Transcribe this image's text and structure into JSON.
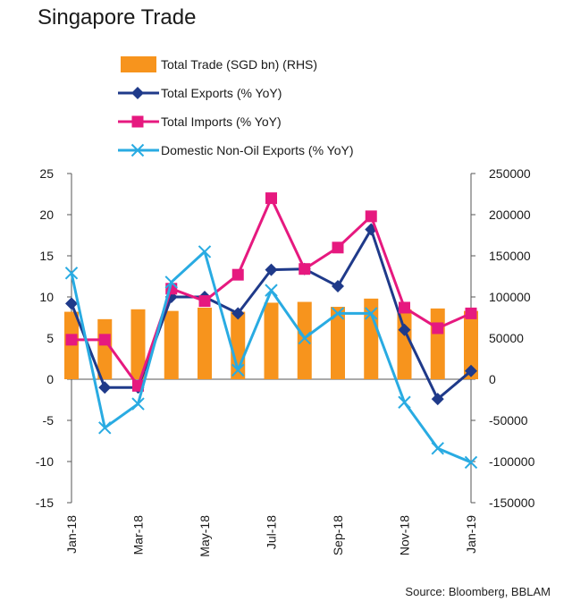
{
  "title": "Singapore Trade",
  "source": "Source: Bloomberg, BBLAM",
  "chart_data": {
    "type": "bar+line",
    "categories": [
      "Jan-18",
      "Feb-18",
      "Mar-18",
      "Apr-18",
      "May-18",
      "Jun-18",
      "Jul-18",
      "Aug-18",
      "Sep-18",
      "Oct-18",
      "Nov-18",
      "Dec-18",
      "Jan-19"
    ],
    "x_tick_labels": [
      "Jan-18",
      "Mar-18",
      "May-18",
      "Jul-18",
      "Sep-18",
      "Nov-18",
      "Jan-19"
    ],
    "left_axis": {
      "ylim": [
        -15,
        25
      ],
      "ticks": [
        "-15",
        "-10",
        "-5",
        "0",
        "5",
        "10",
        "15",
        "20",
        "25"
      ]
    },
    "right_axis": {
      "ylim": [
        -150000,
        250000
      ],
      "ticks": [
        "-150000",
        "-100000",
        "-50000",
        "0",
        "50000",
        "100000",
        "150000",
        "200000",
        "250000"
      ]
    },
    "series": [
      {
        "name": "Total Trade (SGD bn) (RHS)",
        "kind": "bar",
        "axis": "right",
        "color": "#F7941D",
        "values": [
          82000,
          73000,
          85000,
          83000,
          87000,
          82000,
          93000,
          94000,
          88000,
          98000,
          85000,
          86000,
          83000
        ]
      },
      {
        "name": "Total Exports (% YoY)",
        "kind": "line",
        "axis": "left",
        "color": "#1F3A8A",
        "marker": "diamond",
        "values": [
          9.2,
          -1,
          -1,
          10,
          10,
          8,
          13.3,
          13.4,
          11.3,
          18.2,
          6,
          -2.4,
          1
        ]
      },
      {
        "name": "Total Imports (% YoY)",
        "kind": "line",
        "axis": "left",
        "color": "#E6197F",
        "marker": "square",
        "values": [
          4.8,
          4.8,
          -0.8,
          11,
          9.5,
          12.7,
          22,
          13.4,
          16,
          19.8,
          8.7,
          6.2,
          8
        ]
      },
      {
        "name": "Domestic Non-Oil Exports (% YoY)",
        "kind": "line",
        "axis": "left",
        "color": "#29ABE2",
        "marker": "x",
        "values": [
          12.9,
          -5.9,
          -3,
          11.8,
          15.5,
          1.1,
          10.8,
          5,
          8,
          8,
          -2.8,
          -8.4,
          -10.1
        ]
      }
    ],
    "grid": false,
    "legend": "top-left"
  }
}
